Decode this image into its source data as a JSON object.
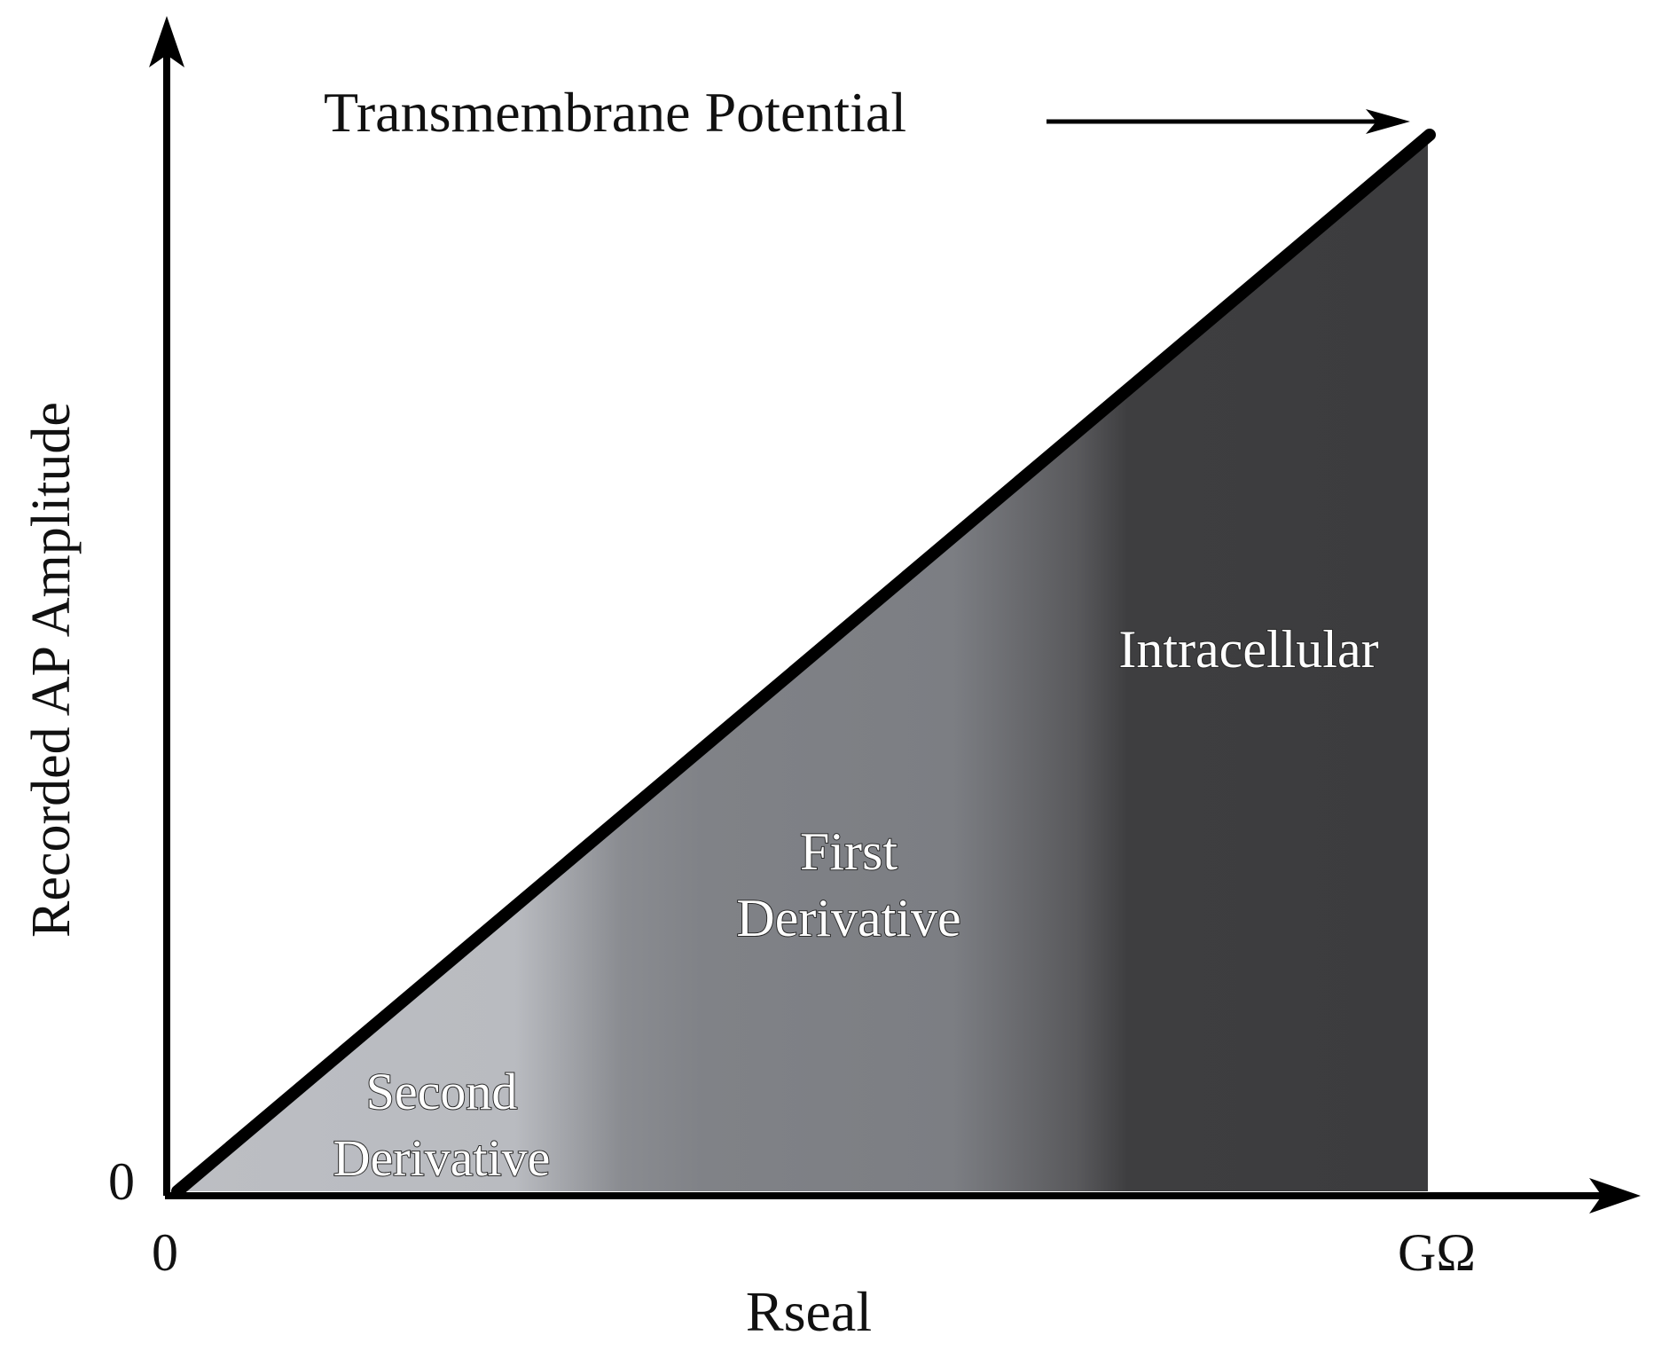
{
  "diagram": {
    "top_label": "Transmembrane Potential",
    "y_axis_label": "Recorded AP Amplitude",
    "x_axis_label": "Rseal",
    "y_origin_tick": "0",
    "x_origin_tick": "0",
    "x_end_tick": "GΩ",
    "regions": {
      "second_derivative": {
        "line1": "Second",
        "line2": "Derivative"
      },
      "first_derivative": {
        "line1": "First",
        "line2": "Derivative"
      },
      "intracellular": {
        "label": "Intracellular"
      }
    },
    "colors": {
      "light_region": "#b9bbc0",
      "mid_region": "#7f8186",
      "dark_region": "#3c3c3e",
      "line": "#000000"
    }
  }
}
